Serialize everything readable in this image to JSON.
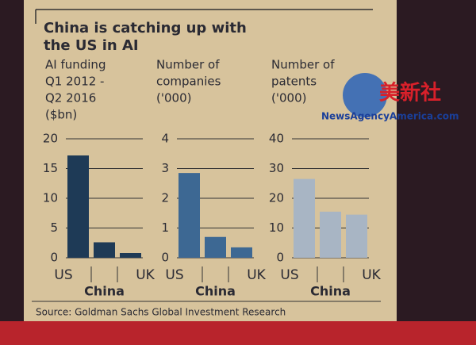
{
  "title": [
    "China is catching up with",
    "the US in AI"
  ],
  "source": "Source: Goldman Sachs Global Investment Research",
  "watermark": {
    "name": "美新社",
    "site": "NewsAgencyAmerica.com"
  },
  "chart_data": [
    {
      "type": "bar",
      "title": [
        "AI funding",
        "Q1 2012 -",
        "Q2 2016",
        "($bn)"
      ],
      "categories": [
        "US",
        "China",
        "UK"
      ],
      "values": [
        17.2,
        2.6,
        0.8
      ],
      "color": "#1e3a56",
      "ylim": [
        0,
        20
      ],
      "yticks": [
        0,
        5,
        10,
        15,
        20
      ],
      "grid": true
    },
    {
      "type": "bar",
      "title": [
        "Number of",
        "companies",
        "('000)"
      ],
      "categories": [
        "US",
        "China",
        "UK"
      ],
      "values": [
        2.85,
        0.7,
        0.35
      ],
      "color": "#3d6893",
      "ylim": [
        0,
        4
      ],
      "yticks": [
        0,
        1,
        2,
        3,
        4
      ],
      "grid": true
    },
    {
      "type": "bar",
      "title": [
        "Number of",
        "patents",
        "('000)"
      ],
      "categories": [
        "US",
        "China",
        "UK"
      ],
      "values": [
        26.5,
        15.5,
        14.5
      ],
      "color": "#a8b5c4",
      "ylim": [
        0,
        40
      ],
      "yticks": [
        0,
        10,
        20,
        30,
        40
      ],
      "grid": true
    }
  ]
}
